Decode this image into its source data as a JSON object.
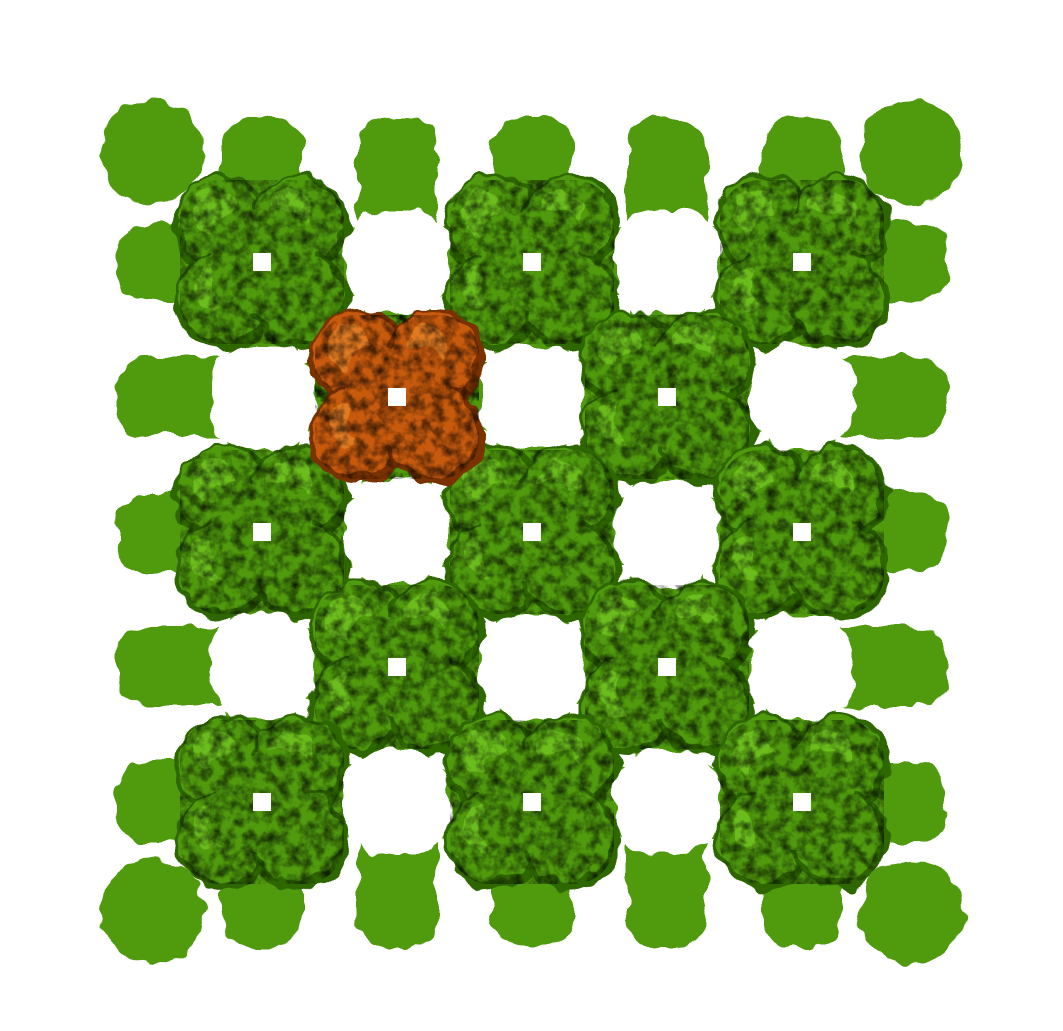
{
  "image": {
    "subject": "protein-lattice",
    "background_color": "#ffffff",
    "lattice": {
      "rows": 5,
      "cols": 5,
      "primary_color": "#4f9a0c",
      "primary_highlight": "#6bbd1c",
      "primary_shadow": "#2f6606"
    },
    "highlighted_unit": {
      "row": 1,
      "col": 1,
      "color": "#c85a0a",
      "highlight": "#e07a22",
      "shadow": "#7a3204"
    }
  }
}
